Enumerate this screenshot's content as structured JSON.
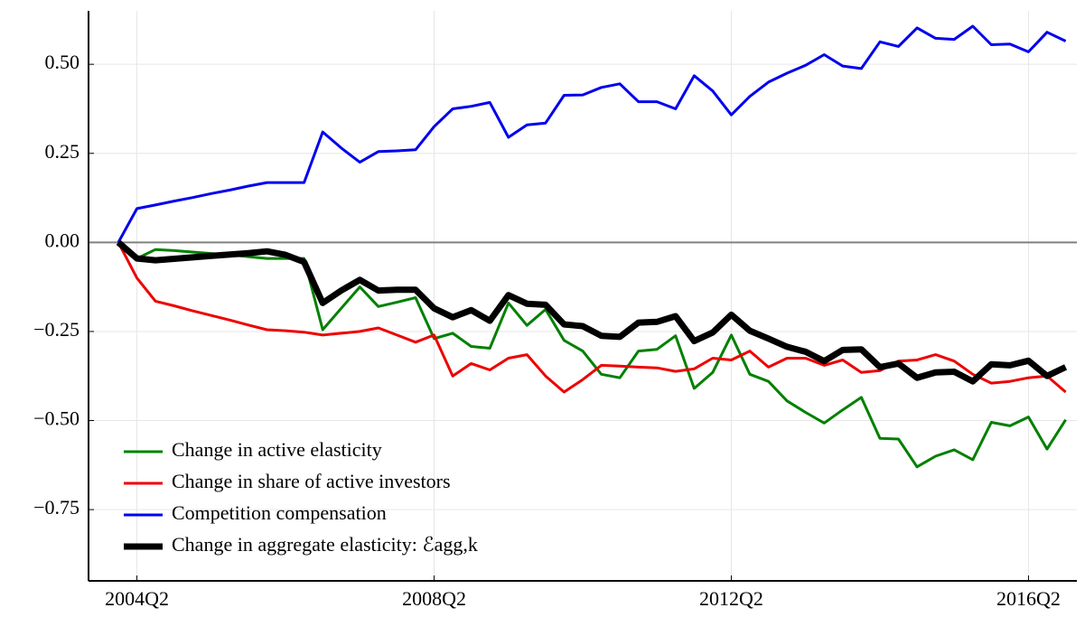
{
  "chart_data": {
    "type": "line",
    "categories": [
      null,
      "2004Q2",
      null,
      null,
      null,
      null,
      null,
      null,
      null,
      null,
      null,
      null,
      null,
      null,
      null,
      null,
      null,
      "2008Q2",
      null,
      null,
      null,
      null,
      null,
      null,
      null,
      null,
      null,
      null,
      null,
      null,
      null,
      null,
      null,
      "2012Q2",
      null,
      null,
      null,
      null,
      null,
      null,
      null,
      null,
      null,
      null,
      null,
      null,
      null,
      null,
      null,
      "2016Q2",
      null,
      null
    ],
    "series": [
      {
        "name": "Change in active elasticity",
        "color": "#008000",
        "width": 3,
        "values": [
          0,
          -0.045,
          -0.02,
          -0.023,
          -0.027,
          -0.031,
          -0.035,
          -0.04,
          -0.045,
          -0.045,
          -0.045,
          -0.245,
          -0.185,
          -0.125,
          -0.18,
          -0.168,
          -0.155,
          -0.27,
          -0.255,
          -0.292,
          -0.297,
          -0.17,
          -0.233,
          -0.188,
          -0.275,
          -0.305,
          -0.37,
          -0.38,
          -0.305,
          -0.3,
          -0.262,
          -0.41,
          -0.365,
          -0.26,
          -0.37,
          -0.39,
          -0.445,
          -0.477,
          -0.507,
          -0.47,
          -0.435,
          -0.55,
          -0.552,
          -0.63,
          -0.6,
          -0.582,
          -0.61,
          -0.505,
          -0.515,
          -0.49,
          -0.58,
          -0.498
        ]
      },
      {
        "name": "Change in share of active investors",
        "color": "#ee0000",
        "width": 3,
        "values": [
          0,
          -0.1,
          -0.165,
          -0.178,
          -0.192,
          -0.205,
          -0.218,
          -0.232,
          -0.245,
          -0.248,
          -0.252,
          -0.26,
          -0.255,
          -0.25,
          -0.24,
          -0.26,
          -0.28,
          -0.26,
          -0.375,
          -0.34,
          -0.358,
          -0.325,
          -0.315,
          -0.375,
          -0.42,
          -0.385,
          -0.345,
          -0.347,
          -0.35,
          -0.352,
          -0.362,
          -0.355,
          -0.325,
          -0.33,
          -0.305,
          -0.35,
          -0.325,
          -0.325,
          -0.345,
          -0.33,
          -0.365,
          -0.36,
          -0.333,
          -0.33,
          -0.315,
          -0.333,
          -0.37,
          -0.395,
          -0.39,
          -0.38,
          -0.375,
          -0.42
        ]
      },
      {
        "name": "Competition compensation",
        "color": "#0000ee",
        "width": 3,
        "values": [
          0,
          0.095,
          0.105,
          0.116,
          0.126,
          0.137,
          0.147,
          0.158,
          0.168,
          0.168,
          0.168,
          0.31,
          0.265,
          0.225,
          0.255,
          0.257,
          0.26,
          0.325,
          0.375,
          0.382,
          0.393,
          0.295,
          0.33,
          0.335,
          0.413,
          0.414,
          0.435,
          0.445,
          0.395,
          0.395,
          0.375,
          0.468,
          0.425,
          0.358,
          0.41,
          0.45,
          0.475,
          0.497,
          0.527,
          0.495,
          0.488,
          0.563,
          0.55,
          0.602,
          0.573,
          0.57,
          0.607,
          0.555,
          0.557,
          0.535,
          0.59,
          0.565
        ]
      },
      {
        "name": "Change in aggregate elasticity: ℰagg,k",
        "color": "#000000",
        "width": 7,
        "values": [
          0,
          -0.045,
          -0.05,
          -0.046,
          -0.042,
          -0.038,
          -0.034,
          -0.03,
          -0.025,
          -0.035,
          -0.055,
          -0.17,
          -0.135,
          -0.105,
          -0.135,
          -0.133,
          -0.133,
          -0.185,
          -0.21,
          -0.19,
          -0.22,
          -0.148,
          -0.172,
          -0.175,
          -0.23,
          -0.235,
          -0.262,
          -0.265,
          -0.225,
          -0.223,
          -0.207,
          -0.277,
          -0.253,
          -0.203,
          -0.248,
          -0.27,
          -0.293,
          -0.307,
          -0.333,
          -0.302,
          -0.3,
          -0.35,
          -0.34,
          -0.38,
          -0.365,
          -0.363,
          -0.39,
          -0.342,
          -0.345,
          -0.332,
          -0.375,
          -0.35
        ]
      }
    ],
    "ylim": [
      -0.95,
      0.65
    ],
    "yticks": [
      {
        "value": -0.75,
        "label": "−0.75"
      },
      {
        "value": -0.5,
        "label": "−0.50"
      },
      {
        "value": -0.25,
        "label": "−0.25"
      },
      {
        "value": 0,
        "label": "0.00"
      },
      {
        "value": 0.25,
        "label": "0.25"
      },
      {
        "value": 0.5,
        "label": "0.50"
      }
    ],
    "grid": true,
    "legend": "lower-left"
  }
}
